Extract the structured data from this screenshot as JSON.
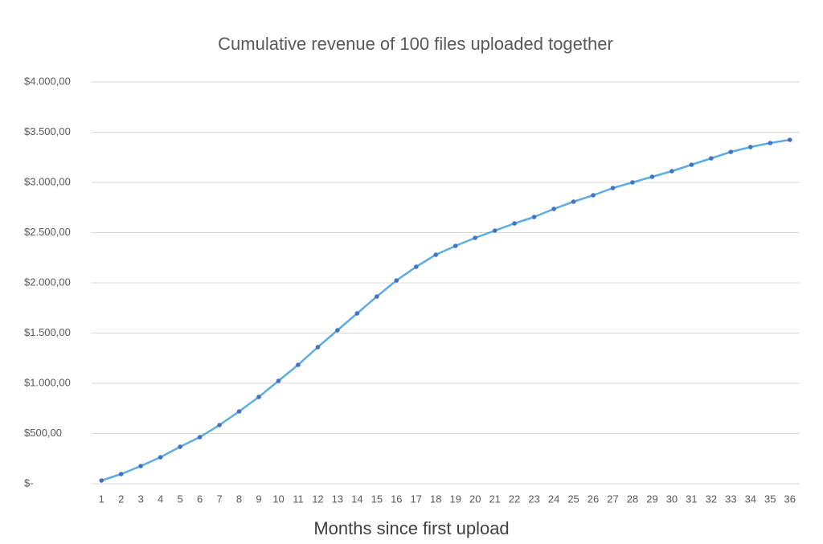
{
  "chart_data": {
    "type": "line",
    "title": "Cumulative revenue of 100 files uploaded together",
    "x_label": "Months since first upload",
    "categories": [
      1,
      2,
      3,
      4,
      5,
      6,
      7,
      8,
      9,
      10,
      11,
      12,
      13,
      14,
      15,
      16,
      17,
      18,
      19,
      20,
      21,
      22,
      23,
      24,
      25,
      26,
      27,
      28,
      29,
      30,
      31,
      32,
      33,
      34,
      35,
      36
    ],
    "series": [
      {
        "color": "#5dade2",
        "marker_color": "#4472c4",
        "values": [
          32,
          96,
          176,
          264,
          368,
          464,
          584,
          720,
          864,
          1024,
          1184,
          1360,
          1528,
          1696,
          1864,
          2024,
          2160,
          2280,
          2368,
          2448,
          2520,
          2592,
          2656,
          2736,
          2808,
          2872,
          2944,
          3000,
          3056,
          3112,
          3176,
          3240,
          3304,
          3352,
          3392,
          3424
        ]
      }
    ],
    "ylim": [
      0,
      4000
    ],
    "yticks": [
      {
        "value": 0,
        "label": "$-"
      },
      {
        "value": 500,
        "label": "$500,00"
      },
      {
        "value": 1000,
        "label": "$1.000,00"
      },
      {
        "value": 1500,
        "label": "$1.500,00"
      },
      {
        "value": 2000,
        "label": "$2.000,00"
      },
      {
        "value": 2500,
        "label": "$2.500,00"
      },
      {
        "value": 3000,
        "label": "$3.000,00"
      },
      {
        "value": 3500,
        "label": "$3.500,00"
      },
      {
        "value": 4000,
        "label": "$4.000,00"
      }
    ],
    "grid": true,
    "grid_color": "#d9d9d9"
  }
}
